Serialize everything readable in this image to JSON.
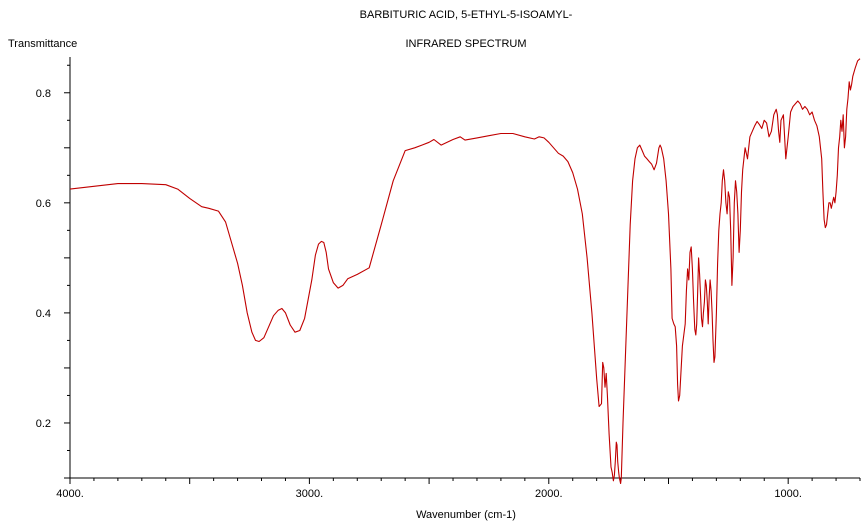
{
  "chart_data": {
    "type": "line",
    "title": "BARBITURIC ACID, 5-ETHYL-5-ISOAMYL-",
    "subtitle": "INFRARED SPECTRUM",
    "xlabel": "Wavenumber (cm-1)",
    "ylabel": "Transmittance",
    "xlim": [
      4000,
      700
    ],
    "ylim": [
      0.1,
      0.865
    ],
    "x_reversed": true,
    "xticks": [
      4000,
      3000,
      2000,
      1000
    ],
    "xtick_labels": [
      "4000.",
      "3000.",
      "2000.",
      "1000."
    ],
    "yticks": [
      0.2,
      0.4,
      0.6,
      0.8
    ],
    "ytick_labels": [
      "0.2",
      "0.4",
      "0.6",
      "0.8"
    ],
    "grid": false,
    "line_color": "#c00000",
    "series": [
      {
        "x": [
          4000,
          3900,
          3800,
          3700,
          3600,
          3550,
          3500,
          3450,
          3420,
          3380,
          3350,
          3320,
          3300,
          3280,
          3260,
          3240,
          3225,
          3210,
          3190,
          3170,
          3150,
          3130,
          3115,
          3100,
          3080,
          3060,
          3040,
          3020,
          3005,
          2990,
          2975,
          2962,
          2950,
          2940,
          2930,
          2920,
          2900,
          2880,
          2860,
          2840,
          2800,
          2750,
          2700,
          2650,
          2600,
          2560,
          2530,
          2500,
          2480,
          2450,
          2400,
          2370,
          2350,
          2300,
          2250,
          2200,
          2150,
          2100,
          2060,
          2040,
          2020,
          2000,
          1980,
          1960,
          1940,
          1920,
          1900,
          1880,
          1860,
          1840,
          1820,
          1800,
          1790,
          1780,
          1775,
          1770,
          1765,
          1760,
          1755,
          1748,
          1740,
          1735,
          1730,
          1726,
          1722,
          1718,
          1715,
          1712,
          1708,
          1705,
          1700,
          1697,
          1690,
          1680,
          1670,
          1660,
          1650,
          1640,
          1630,
          1620,
          1610,
          1600,
          1590,
          1580,
          1570,
          1560,
          1550,
          1540,
          1535,
          1530,
          1520,
          1510,
          1500,
          1490,
          1485,
          1478,
          1472,
          1466,
          1462,
          1458,
          1453,
          1447,
          1442,
          1436,
          1430,
          1425,
          1420,
          1415,
          1410,
          1405,
          1400,
          1395,
          1390,
          1386,
          1382,
          1378,
          1374,
          1370,
          1366,
          1362,
          1358,
          1354,
          1350,
          1346,
          1342,
          1338,
          1334,
          1330,
          1326,
          1322,
          1318,
          1314,
          1310,
          1306,
          1300,
          1295,
          1290,
          1285,
          1280,
          1275,
          1270,
          1265,
          1260,
          1255,
          1250,
          1245,
          1240,
          1235,
          1230,
          1225,
          1220,
          1215,
          1210,
          1205,
          1200,
          1195,
          1190,
          1185,
          1180,
          1175,
          1170,
          1165,
          1160,
          1150,
          1140,
          1130,
          1120,
          1110,
          1100,
          1090,
          1080,
          1070,
          1060,
          1055,
          1050,
          1045,
          1040,
          1035,
          1030,
          1020,
          1010,
          1000,
          990,
          980,
          970,
          960,
          950,
          940,
          930,
          920,
          910,
          900,
          890,
          880,
          870,
          860,
          855,
          850,
          845,
          840,
          835,
          830,
          825,
          820,
          815,
          810,
          805,
          800,
          795,
          790,
          785,
          780,
          775,
          770,
          765,
          760,
          755,
          750,
          745,
          740,
          735,
          730,
          720,
          710,
          700
        ],
        "y": [
          0.625,
          0.63,
          0.635,
          0.635,
          0.633,
          0.625,
          0.608,
          0.593,
          0.59,
          0.585,
          0.565,
          0.52,
          0.49,
          0.45,
          0.4,
          0.365,
          0.35,
          0.348,
          0.355,
          0.375,
          0.395,
          0.405,
          0.408,
          0.4,
          0.378,
          0.365,
          0.368,
          0.39,
          0.425,
          0.46,
          0.505,
          0.525,
          0.53,
          0.528,
          0.51,
          0.48,
          0.455,
          0.445,
          0.45,
          0.462,
          0.47,
          0.482,
          0.56,
          0.64,
          0.695,
          0.7,
          0.705,
          0.71,
          0.715,
          0.705,
          0.715,
          0.72,
          0.714,
          0.718,
          0.722,
          0.726,
          0.726,
          0.72,
          0.716,
          0.72,
          0.718,
          0.71,
          0.7,
          0.69,
          0.685,
          0.675,
          0.655,
          0.625,
          0.58,
          0.5,
          0.4,
          0.28,
          0.23,
          0.235,
          0.31,
          0.3,
          0.265,
          0.29,
          0.25,
          0.18,
          0.12,
          0.11,
          0.095,
          0.105,
          0.13,
          0.165,
          0.16,
          0.13,
          0.11,
          0.1,
          0.09,
          0.1,
          0.2,
          0.32,
          0.44,
          0.56,
          0.64,
          0.68,
          0.7,
          0.705,
          0.695,
          0.685,
          0.68,
          0.675,
          0.67,
          0.66,
          0.672,
          0.7,
          0.705,
          0.7,
          0.68,
          0.64,
          0.58,
          0.48,
          0.39,
          0.38,
          0.375,
          0.34,
          0.27,
          0.24,
          0.25,
          0.3,
          0.34,
          0.36,
          0.38,
          0.44,
          0.48,
          0.46,
          0.51,
          0.52,
          0.48,
          0.42,
          0.37,
          0.36,
          0.38,
          0.44,
          0.5,
          0.47,
          0.43,
          0.39,
          0.375,
          0.4,
          0.42,
          0.46,
          0.45,
          0.42,
          0.38,
          0.43,
          0.46,
          0.44,
          0.4,
          0.35,
          0.31,
          0.32,
          0.4,
          0.49,
          0.55,
          0.58,
          0.6,
          0.64,
          0.66,
          0.64,
          0.6,
          0.58,
          0.62,
          0.61,
          0.55,
          0.45,
          0.5,
          0.6,
          0.64,
          0.62,
          0.58,
          0.51,
          0.55,
          0.62,
          0.66,
          0.68,
          0.7,
          0.69,
          0.68,
          0.7,
          0.72,
          0.73,
          0.74,
          0.748,
          0.742,
          0.735,
          0.75,
          0.745,
          0.72,
          0.73,
          0.76,
          0.765,
          0.77,
          0.76,
          0.73,
          0.71,
          0.75,
          0.76,
          0.68,
          0.72,
          0.765,
          0.775,
          0.78,
          0.785,
          0.78,
          0.77,
          0.775,
          0.77,
          0.76,
          0.765,
          0.75,
          0.74,
          0.72,
          0.68,
          0.62,
          0.57,
          0.555,
          0.56,
          0.58,
          0.6,
          0.6,
          0.59,
          0.6,
          0.61,
          0.6,
          0.62,
          0.65,
          0.7,
          0.72,
          0.75,
          0.73,
          0.76,
          0.7,
          0.72,
          0.77,
          0.79,
          0.82,
          0.805,
          0.815,
          0.83,
          0.845,
          0.858,
          0.862
        ]
      }
    ]
  }
}
